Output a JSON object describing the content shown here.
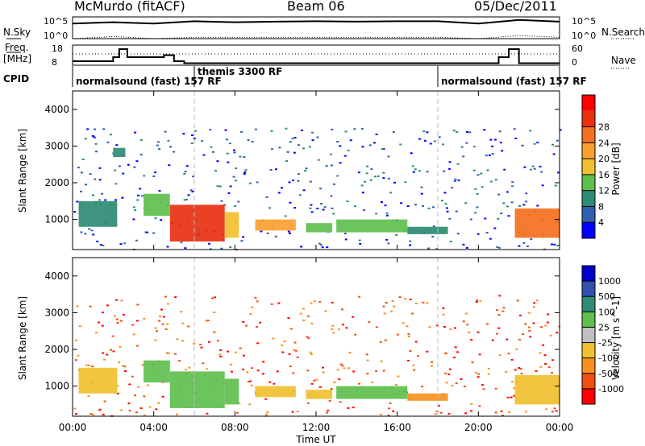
{
  "header": {
    "station": "McMurdo (fitACF)",
    "beam": "Beam 06",
    "date": "05/Dec/2011"
  },
  "left_labels": {
    "nsky": "N.Sky",
    "nsky_ticks": [
      "10^5",
      "10^0"
    ],
    "freq": "Freq.",
    "freq_unit": "[MHz]",
    "freq_ticks": [
      "18",
      "8"
    ],
    "cpid": "CPID"
  },
  "right_labels": {
    "nsearch": "N.Search",
    "nsearch_ticks": [
      "10^5",
      "10^0"
    ],
    "nave": "Nave",
    "nave_ticks": [
      "60",
      "0"
    ]
  },
  "cpid_segments": [
    {
      "label": "normalsound (fast) 157 RF",
      "start_h": 0
    },
    {
      "label": "themis 3300 RF",
      "start_h": 6
    },
    {
      "label": "normalsound (fast) 157 RF",
      "start_h": 18
    }
  ],
  "colors": {
    "power_scale": [
      "#0000ff",
      "#2f5faf",
      "#2e8b74",
      "#5fbf4f",
      "#f0c030",
      "#f8a030",
      "#f47020",
      "#e83010",
      "#ff0000"
    ],
    "velocity_scale": [
      "#0000cc",
      "#3050b0",
      "#2e8b74",
      "#5fbf4f",
      "#c0c0c0",
      "#f0c030",
      "#f89020",
      "#f05010",
      "#ff0000"
    ]
  },
  "chart_data": [
    {
      "type": "line",
      "title": "",
      "ylabel": "N.Sky",
      "series": [
        {
          "name": "N.Sky",
          "x": [
            0,
            2,
            4,
            6,
            8,
            10,
            12,
            14,
            16,
            18,
            20,
            22,
            24
          ],
          "values": [
            3000,
            6000,
            3000,
            10000,
            6000,
            8000,
            10000,
            8000,
            10000,
            10000,
            3000,
            20000,
            8000
          ]
        },
        {
          "name": "N.Search",
          "x": [
            0,
            2,
            4,
            6,
            8,
            10,
            12,
            14,
            16,
            18,
            20,
            22,
            24
          ],
          "values": [
            1,
            3,
            1,
            2,
            2,
            2,
            2,
            2,
            2,
            2,
            1,
            5,
            2
          ]
        }
      ],
      "ylim": [
        1,
        100000
      ]
    },
    {
      "type": "line",
      "title": "",
      "ylabel": "Freq. [MHz]",
      "series": [
        {
          "name": "Freq.",
          "x": [
            0,
            1,
            2,
            2.3,
            2.7,
            3,
            4.5,
            5,
            5.5,
            6,
            17.5,
            18,
            20.5,
            21,
            21.5,
            22,
            24
          ],
          "values": [
            10,
            10,
            12,
            16,
            12,
            12,
            13,
            10,
            9,
            9,
            9,
            9,
            9,
            12,
            16,
            9,
            9
          ]
        },
        {
          "name": "Nave",
          "x": [
            0,
            24
          ],
          "values": [
            18,
            18
          ]
        }
      ],
      "ylim": [
        8,
        18
      ],
      "xlim": [
        0,
        24
      ]
    },
    {
      "type": "heatmap",
      "title": "",
      "ylabel": "Slant Range [km]",
      "xlabel": "",
      "colorbar_label": "Power [dB]",
      "colorbar_ticks": [
        "4",
        "8",
        "12",
        "16",
        "20",
        "24",
        "28"
      ],
      "yticks": [
        "1000",
        "2000",
        "3000",
        "4000"
      ],
      "ylim": [
        180,
        4500
      ],
      "xlim": [
        0,
        24
      ],
      "echo_regions": [
        {
          "x0": 0.3,
          "x1": 2.2,
          "y0": 800,
          "y1": 1500,
          "value": 8
        },
        {
          "x0": 2.0,
          "x1": 2.6,
          "y0": 2700,
          "y1": 2950,
          "value": 8
        },
        {
          "x0": 3.5,
          "x1": 4.8,
          "y0": 1100,
          "y1": 1700,
          "value": 12
        },
        {
          "x0": 4.8,
          "x1": 7.5,
          "y0": 400,
          "y1": 1400,
          "value": 28
        },
        {
          "x0": 7.5,
          "x1": 8.2,
          "y0": 500,
          "y1": 1200,
          "value": 16
        },
        {
          "x0": 9.0,
          "x1": 11.0,
          "y0": 700,
          "y1": 1000,
          "value": 20
        },
        {
          "x0": 11.5,
          "x1": 12.8,
          "y0": 650,
          "y1": 900,
          "value": 14
        },
        {
          "x0": 13.0,
          "x1": 16.5,
          "y0": 650,
          "y1": 1000,
          "value": 12
        },
        {
          "x0": 16.5,
          "x1": 18.5,
          "y0": 600,
          "y1": 800,
          "value": 10
        },
        {
          "x0": 21.8,
          "x1": 24.0,
          "y0": 500,
          "y1": 1300,
          "value": 26
        }
      ]
    },
    {
      "type": "heatmap",
      "title": "",
      "ylabel": "Slant Range [km]",
      "xlabel": "Time UT",
      "colorbar_label": "Velocity [m s^-1]",
      "colorbar_ticks": [
        "1000",
        "500",
        "100",
        "25",
        "-25",
        "-100",
        "-500",
        "-1000"
      ],
      "yticks": [
        "1000",
        "2000",
        "3000",
        "4000"
      ],
      "ylim": [
        180,
        4500
      ],
      "xlim": [
        0,
        24
      ],
      "xticks": [
        "00:00",
        "04:00",
        "08:00",
        "12:00",
        "16:00",
        "20:00",
        "00:00"
      ],
      "echo_regions": [
        {
          "x0": 0.3,
          "x1": 2.2,
          "y0": 800,
          "y1": 1500,
          "value": -60
        },
        {
          "x0": 3.5,
          "x1": 4.8,
          "y0": 1100,
          "y1": 1700,
          "value": 80
        },
        {
          "x0": 4.8,
          "x1": 7.5,
          "y0": 400,
          "y1": 1400,
          "value": 60
        },
        {
          "x0": 7.5,
          "x1": 8.2,
          "y0": 500,
          "y1": 1200,
          "value": 80
        },
        {
          "x0": 9.0,
          "x1": 11.0,
          "y0": 700,
          "y1": 1000,
          "value": -100
        },
        {
          "x0": 11.5,
          "x1": 12.8,
          "y0": 650,
          "y1": 900,
          "value": -80
        },
        {
          "x0": 13.0,
          "x1": 16.5,
          "y0": 650,
          "y1": 1000,
          "value": 60
        },
        {
          "x0": 16.5,
          "x1": 18.5,
          "y0": 600,
          "y1": 800,
          "value": -200
        },
        {
          "x0": 21.8,
          "x1": 24.0,
          "y0": 500,
          "y1": 1300,
          "value": -60
        }
      ]
    }
  ]
}
